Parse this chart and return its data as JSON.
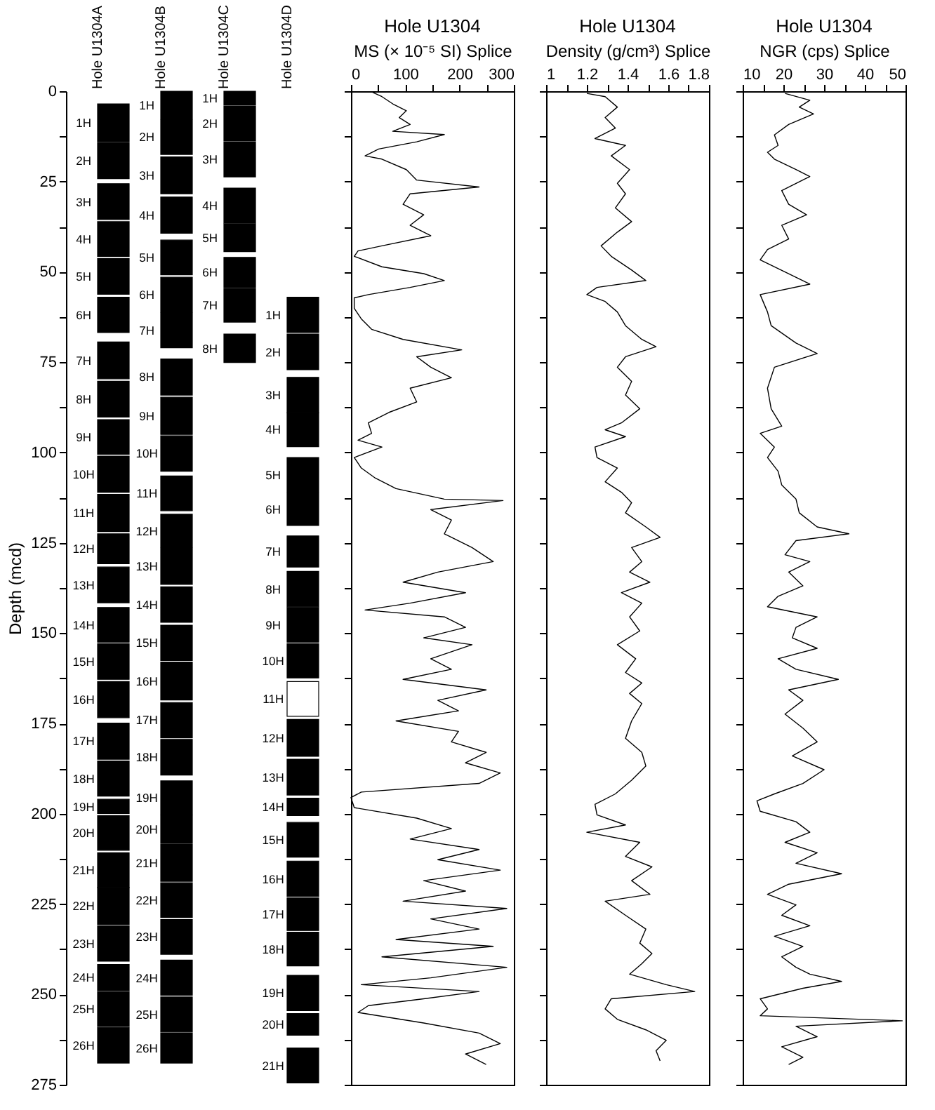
{
  "chart_data": [
    {
      "type": "bar",
      "categories": [
        "Hole U1304A",
        "Hole U1304B",
        "Hole U1304C",
        "Hole U1304D"
      ],
      "ylabel": "Depth (mcd)",
      "ylim": [
        275,
        0
      ],
      "yticks": [
        0,
        {
          "value": 12.5,
          "label": null
        },
        25,
        {
          "value": 37.5,
          "label": null
        },
        50,
        {
          "value": 62.5,
          "label": null
        },
        75,
        {
          "value": 87.5,
          "label": null
        },
        100,
        {
          "value": 112.5,
          "label": null
        },
        125,
        {
          "value": 137.5,
          "label": null
        },
        150,
        {
          "value": 162.5,
          "label": null
        },
        175,
        {
          "value": 187.5,
          "label": null
        },
        200,
        {
          "value": 212.5,
          "label": null
        },
        225,
        {
          "value": 237.5,
          "label": null
        },
        250,
        {
          "value": 262.5,
          "label": null
        },
        275
      ],
      "legend": false,
      "series": [
        {
          "color": "#000000",
          "base": [
            3.5,
            0,
            0,
            57.0
          ],
          "values": [
            10.5,
            7.7,
            3.8,
            9.8
          ]
        },
        {
          "color": "#000000",
          "base": [
            14.3,
            7.9,
            4.1,
            67.2
          ],
          "values": [
            9.9,
            9.6,
            9.6,
            9.9
          ]
        },
        {
          "color": "#000000",
          "base": [
            25.6,
            18.2,
            14.0,
            79.2
          ],
          "values": [
            9.9,
            10.2,
            9.7,
            9.8
          ]
        },
        {
          "color": "#000000",
          "base": [
            36.1,
            29.3,
            26.8,
            89.0
          ],
          "values": [
            9.6,
            10.0,
            9.7,
            9.4
          ]
        },
        {
          "color": "#000000",
          "base": [
            46.3,
            41.2,
            36.7,
            101.4
          ],
          "values": [
            9.9,
            9.6,
            7.7,
            9.6
          ]
        },
        {
          "color": "#000000",
          "base": [
            57.0,
            51.5,
            46.0,
            111.2
          ],
          "values": [
            9.8,
            9.6,
            8.4,
            9.0
          ]
        },
        {
          "color": "#000000",
          "base": [
            69.4,
            61.3,
            54.7,
            123.1
          ],
          "values": [
            10.2,
            9.7,
            9.2,
            8.6
          ]
        },
        {
          "color": "#000000",
          "base": [
            80.3,
            74.1,
            67.2,
            132.9
          ],
          "values": [
            9.9,
            10.0,
            7.9,
            9.8
          ]
        },
        {
          "color": "#000000",
          "base": [
            90.9,
            84.7,
            null,
            142.9
          ],
          "values": [
            9.6,
            10.3,
            null,
            9.6
          ]
        },
        {
          "color": "#000000",
          "base": [
            101.0,
            95.4,
            null,
            152.9
          ],
          "values": [
            10.0,
            9.8,
            null,
            9.5
          ]
        },
        {
          "colors": [
            "#000000",
            "#000000",
            null,
            "#ffffff"
          ],
          "base": [
            111.6,
            106.5,
            null,
            163.4
          ],
          "values": [
            10.3,
            9.6,
            null,
            9.6
          ]
        },
        {
          "color": "#000000",
          "base": [
            122.5,
            117.1,
            null,
            173.9
          ],
          "values": [
            8.3,
            9.2,
            null,
            10.2
          ]
        },
        {
          "color": "#000000",
          "base": [
            131.7,
            126.5,
            null,
            184.9
          ],
          "values": [
            9.9,
            10.0,
            null,
            9.9
          ]
        },
        {
          "color": "#000000",
          "base": [
            142.9,
            137.2,
            null,
            195.7
          ],
          "values": [
            9.6,
            9.8,
            null,
            4.8
          ]
        },
        {
          "color": "#000000",
          "base": [
            152.9,
            147.8,
            null,
            202.4
          ],
          "values": [
            9.9,
            9.8,
            null,
            9.6
          ]
        },
        {
          "color": "#000000",
          "base": [
            163.4,
            158.0,
            null,
            213.1
          ],
          "values": [
            10.0,
            10.5,
            null,
            9.8
          ]
        },
        {
          "color": "#000000",
          "base": [
            174.9,
            169.2,
            null,
            223.3
          ],
          "values": [
            10.0,
            9.8,
            null,
            9.0
          ]
        },
        {
          "color": "#000000",
          "base": [
            185.4,
            179.4,
            null,
            232.8
          ],
          "values": [
            9.7,
            9.9,
            null,
            9.3
          ]
        },
        {
          "color": "#000000",
          "base": [
            196.0,
            190.9,
            null,
            244.7
          ],
          "values": [
            3.9,
            9.4,
            null,
            9.8
          ]
        },
        {
          "color": "#000000",
          "base": [
            200.5,
            200.5,
            null,
            255.3
          ],
          "values": [
            9.6,
            7.7,
            null,
            6.0
          ]
        },
        {
          "color": "#000000",
          "base": [
            210.8,
            208.5,
            null,
            264.8
          ],
          "values": [
            9.6,
            10.2,
            null,
            9.7
          ]
        },
        {
          "color": "#000000",
          "base": [
            220.4,
            219.1,
            null,
            null
          ],
          "values": [
            10.2,
            9.6,
            null,
            null
          ]
        },
        {
          "color": "#000000",
          "base": [
            231.0,
            229.3,
            null,
            null
          ],
          "values": [
            9.8,
            9.6,
            null,
            null
          ]
        },
        {
          "color": "#000000",
          "base": [
            241.7,
            240.5,
            null,
            null
          ],
          "values": [
            7.2,
            9.7,
            null,
            null
          ]
        },
        {
          "color": "#000000",
          "base": [
            249.2,
            250.7,
            null,
            null
          ],
          "values": [
            9.6,
            9.7,
            null,
            null
          ]
        },
        {
          "color": "#000000",
          "base": [
            259.1,
            260.7,
            null,
            null
          ],
          "values": [
            9.9,
            8.3,
            null,
            null
          ]
        }
      ],
      "annotations": [
        {
          "text": "1H",
          "x": "Hole U1304A",
          "y": 8.8
        },
        {
          "text": "2H",
          "x": "Hole U1304A",
          "y": 19.3
        },
        {
          "text": "3H",
          "x": "Hole U1304A",
          "y": 30.6
        },
        {
          "text": "4H",
          "x": "Hole U1304A",
          "y": 40.9
        },
        {
          "text": "5H",
          "x": "Hole U1304A",
          "y": 51.3
        },
        {
          "text": "6H",
          "x": "Hole U1304A",
          "y": 61.9
        },
        {
          "text": "7H",
          "x": "Hole U1304A",
          "y": 74.5
        },
        {
          "text": "8H",
          "x": "Hole U1304A",
          "y": 85.3
        },
        {
          "text": "9H",
          "x": "Hole U1304A",
          "y": 95.7
        },
        {
          "text": "10H",
          "x": "Hole U1304A",
          "y": 106.0
        },
        {
          "text": "11H",
          "x": "Hole U1304A",
          "y": 116.8
        },
        {
          "text": "12H",
          "x": "Hole U1304A",
          "y": 126.7
        },
        {
          "text": "13H",
          "x": "Hole U1304A",
          "y": 136.7
        },
        {
          "text": "14H",
          "x": "Hole U1304A",
          "y": 147.7
        },
        {
          "text": "15H",
          "x": "Hole U1304A",
          "y": 157.9
        },
        {
          "text": "16H",
          "x": "Hole U1304A",
          "y": 168.4
        },
        {
          "text": "17H",
          "x": "Hole U1304A",
          "y": 179.9
        },
        {
          "text": "18H",
          "x": "Hole U1304A",
          "y": 190.3
        },
        {
          "text": "19H",
          "x": "Hole U1304A",
          "y": 198.0
        },
        {
          "text": "20H",
          "x": "Hole U1304A",
          "y": 205.3
        },
        {
          "text": "21H",
          "x": "Hole U1304A",
          "y": 215.6
        },
        {
          "text": "22H",
          "x": "Hole U1304A",
          "y": 225.5
        },
        {
          "text": "23H",
          "x": "Hole U1304A",
          "y": 235.9
        },
        {
          "text": "24H",
          "x": "Hole U1304A",
          "y": 245.3
        },
        {
          "text": "25H",
          "x": "Hole U1304A",
          "y": 254.0
        },
        {
          "text": "26H",
          "x": "Hole U1304A",
          "y": 264.1
        },
        {
          "text": "1H",
          "x": "Hole U1304B",
          "y": 3.9
        },
        {
          "text": "2H",
          "x": "Hole U1304B",
          "y": 12.7
        },
        {
          "text": "3H",
          "x": "Hole U1304B",
          "y": 23.3
        },
        {
          "text": "4H",
          "x": "Hole U1304B",
          "y": 34.3
        },
        {
          "text": "5H",
          "x": "Hole U1304B",
          "y": 46.0
        },
        {
          "text": "6H",
          "x": "Hole U1304B",
          "y": 56.3
        },
        {
          "text": "7H",
          "x": "Hole U1304B",
          "y": 66.2
        },
        {
          "text": "8H",
          "x": "Hole U1304B",
          "y": 79.1
        },
        {
          "text": "9H",
          "x": "Hole U1304B",
          "y": 89.9
        },
        {
          "text": "10H",
          "x": "Hole U1304B",
          "y": 100.3
        },
        {
          "text": "11H",
          "x": "Hole U1304B",
          "y": 111.3
        },
        {
          "text": "12H",
          "x": "Hole U1304B",
          "y": 121.7
        },
        {
          "text": "13H",
          "x": "Hole U1304B",
          "y": 131.5
        },
        {
          "text": "14H",
          "x": "Hole U1304B",
          "y": 142.1
        },
        {
          "text": "15H",
          "x": "Hole U1304B",
          "y": 152.7
        },
        {
          "text": "16H",
          "x": "Hole U1304B",
          "y": 163.3
        },
        {
          "text": "17H",
          "x": "Hole U1304B",
          "y": 174.1
        },
        {
          "text": "18H",
          "x": "Hole U1304B",
          "y": 184.4
        },
        {
          "text": "19H",
          "x": "Hole U1304B",
          "y": 195.6
        },
        {
          "text": "20H",
          "x": "Hole U1304B",
          "y": 204.4
        },
        {
          "text": "21H",
          "x": "Hole U1304B",
          "y": 213.6
        },
        {
          "text": "22H",
          "x": "Hole U1304B",
          "y": 223.9
        },
        {
          "text": "23H",
          "x": "Hole U1304B",
          "y": 234.1
        },
        {
          "text": "24H",
          "x": "Hole U1304B",
          "y": 245.4
        },
        {
          "text": "25H",
          "x": "Hole U1304B",
          "y": 255.6
        },
        {
          "text": "26H",
          "x": "Hole U1304B",
          "y": 264.9
        },
        {
          "text": "1H",
          "x": "Hole U1304C",
          "y": 1.9
        },
        {
          "text": "2H",
          "x": "Hole U1304C",
          "y": 8.9
        },
        {
          "text": "3H",
          "x": "Hole U1304C",
          "y": 18.9
        },
        {
          "text": "4H",
          "x": "Hole U1304C",
          "y": 31.7
        },
        {
          "text": "5H",
          "x": "Hole U1304C",
          "y": 40.6
        },
        {
          "text": "6H",
          "x": "Hole U1304C",
          "y": 50.2
        },
        {
          "text": "7H",
          "x": "Hole U1304C",
          "y": 59.3
        },
        {
          "text": "8H",
          "x": "Hole U1304C",
          "y": 71.2
        },
        {
          "text": "1H",
          "x": "Hole U1304D",
          "y": 61.9
        },
        {
          "text": "2H",
          "x": "Hole U1304D",
          "y": 72.2
        },
        {
          "text": "3H",
          "x": "Hole U1304D",
          "y": 84.1
        },
        {
          "text": "4H",
          "x": "Hole U1304D",
          "y": 93.7
        },
        {
          "text": "5H",
          "x": "Hole U1304D",
          "y": 106.2
        },
        {
          "text": "6H",
          "x": "Hole U1304D",
          "y": 115.7
        },
        {
          "text": "7H",
          "x": "Hole U1304D",
          "y": 127.4
        },
        {
          "text": "8H",
          "x": "Hole U1304D",
          "y": 137.8
        },
        {
          "text": "9H",
          "x": "Hole U1304D",
          "y": 147.7
        },
        {
          "text": "10H",
          "x": "Hole U1304D",
          "y": 157.7
        },
        {
          "text": "11H",
          "x": "Hole U1304D",
          "y": 168.2
        },
        {
          "text": "12H",
          "x": "Hole U1304D",
          "y": 179.0
        },
        {
          "text": "13H",
          "x": "Hole U1304D",
          "y": 189.9
        },
        {
          "text": "14H",
          "x": "Hole U1304D",
          "y": 198.1
        },
        {
          "text": "15H",
          "x": "Hole U1304D",
          "y": 207.2
        },
        {
          "text": "16H",
          "x": "Hole U1304D",
          "y": 218.0
        },
        {
          "text": "17H",
          "x": "Hole U1304D",
          "y": 227.8
        },
        {
          "text": "18H",
          "x": "Hole U1304D",
          "y": 237.5
        },
        {
          "text": "19H",
          "x": "Hole U1304D",
          "y": 249.6
        },
        {
          "text": "20H",
          "x": "Hole U1304D",
          "y": 258.3
        },
        {
          "text": "21H",
          "x": "Hole U1304D",
          "y": 269.7
        }
      ]
    },
    {
      "type": "line",
      "orientation": "horizontal",
      "title": "Hole U1304",
      "xlabel": "MS (× 10⁻⁵ SI) Splice",
      "xlim": [
        0,
        300
      ],
      "xticks": [
        0,
        {
          "value": 50,
          "label": null
        },
        100,
        {
          "value": 150,
          "label": null
        },
        200,
        {
          "value": 250,
          "label": null
        },
        300
      ],
      "ylim": [
        275,
        0
      ],
      "yticks": [
        {
          "value": 0,
          "label": null
        },
        {
          "value": 12.5,
          "label": null
        },
        {
          "value": 25,
          "label": null
        },
        {
          "value": 37.5,
          "label": null
        },
        {
          "value": 50,
          "label": null
        },
        {
          "value": 62.5,
          "label": null
        },
        {
          "value": 75,
          "label": null
        },
        {
          "value": 87.5,
          "label": null
        },
        {
          "value": 100,
          "label": null
        },
        {
          "value": 112.5,
          "label": null
        },
        {
          "value": 125,
          "label": null
        },
        {
          "value": 137.5,
          "label": null
        },
        {
          "value": 150,
          "label": null
        },
        {
          "value": 162.5,
          "label": null
        },
        {
          "value": 175,
          "label": null
        },
        {
          "value": 187.5,
          "label": null
        },
        {
          "value": 200,
          "label": null
        },
        {
          "value": 212.5,
          "label": null
        },
        {
          "value": 225,
          "label": null
        },
        {
          "value": 237.5,
          "label": null
        },
        {
          "value": 250,
          "label": null
        },
        {
          "value": 262.5,
          "label": null
        },
        {
          "value": 275,
          "label": null
        }
      ],
      "tick_labels": "x",
      "legend": false,
      "series": [
        {
          "color": "#000000",
          "x": [
            0.3,
            1.5,
            3.5,
            5.4,
            7.3,
            9.2,
            11.1,
            12,
            14,
            16,
            17.9,
            18.8,
            21.7,
            24.6,
            26.5,
            28.4,
            31.3,
            34.2,
            37.1,
            40,
            42.8,
            44.2,
            45.7,
            48.6,
            50.5,
            52.4,
            54.3,
            56.3,
            57.2,
            60.1,
            63,
            65.9,
            68.7,
            71.6,
            73.5,
            76.4,
            79.3,
            82.2,
            86,
            88.9,
            91.8,
            94.7,
            96.6,
            98.5,
            101.4,
            104.3,
            107.1,
            110,
            112.9,
            113.3,
            115.8,
            118.7,
            122.5,
            126.3,
            130.2,
            133.1,
            135.9,
            138.8,
            141.7,
            143.6,
            145.5,
            148.4,
            151.3,
            153.2,
            157.1,
            160,
            162.8,
            165.7,
            168.6,
            171.5,
            174.3,
            177.2,
            180.1,
            183,
            185.9,
            188.7,
            191.6,
            194,
            195.5,
            198.3,
            201.2,
            204.1,
            207,
            209.9,
            212.7,
            215.6,
            218.5,
            221.4,
            224.2,
            226.2,
            229.1,
            231.9,
            234.8,
            236.7,
            239.6,
            242.5,
            245.4,
            247.3,
            249.2,
            251.2,
            253.1,
            255,
            257.9,
            260.7,
            263.6,
            266.5,
            269.4
          ],
          "values": [
            40,
            57,
            77,
            102,
            89,
            109,
            77,
            172,
            121,
            51,
            26,
            57,
            102,
            121,
            236,
            109,
            96,
            134,
            109,
            147,
            57,
            13,
            6,
            57,
            134,
            172,
            109,
            32,
            6,
            6,
            19,
            38,
            96,
            204,
            121,
            147,
            185,
            109,
            121,
            70,
            32,
            38,
            13,
            57,
            6,
            19,
            45,
            83,
            172,
            280,
            147,
            185,
            172,
            223,
            262,
            160,
            96,
            211,
            109,
            26,
            172,
            211,
            134,
            223,
            147,
            185,
            96,
            249,
            160,
            198,
            83,
            198,
            185,
            249,
            211,
            275,
            236,
            19,
            0,
            6,
            121,
            185,
            109,
            236,
            160,
            275,
            134,
            211,
            96,
            287,
            147,
            236,
            83,
            262,
            57,
            287,
            147,
            19,
            236,
            134,
            32,
            13,
            134,
            236,
            275,
            211,
            249
          ]
        }
      ]
    },
    {
      "type": "line",
      "orientation": "horizontal",
      "title": "Hole U1304",
      "xlabel": "Density (g/cm³) Splice",
      "xlim": [
        1,
        1.8
      ],
      "xticks": [
        1,
        {
          "value": 1.1,
          "label": null
        },
        1.2,
        {
          "value": 1.3,
          "label": null
        },
        1.4,
        {
          "value": 1.5,
          "label": null
        },
        1.6,
        {
          "value": 1.7,
          "label": null
        },
        1.8
      ],
      "ylim": [
        275,
        0
      ],
      "yticks": [
        {
          "value": 0,
          "label": null
        },
        {
          "value": 12.5,
          "label": null
        },
        {
          "value": 25,
          "label": null
        },
        {
          "value": 37.5,
          "label": null
        },
        {
          "value": 50,
          "label": null
        },
        {
          "value": 62.5,
          "label": null
        },
        {
          "value": 75,
          "label": null
        },
        {
          "value": 87.5,
          "label": null
        },
        {
          "value": 100,
          "label": null
        },
        {
          "value": 112.5,
          "label": null
        },
        {
          "value": 125,
          "label": null
        },
        {
          "value": 137.5,
          "label": null
        },
        {
          "value": 150,
          "label": null
        },
        {
          "value": 162.5,
          "label": null
        },
        {
          "value": 175,
          "label": null
        },
        {
          "value": 187.5,
          "label": null
        },
        {
          "value": 200,
          "label": null
        },
        {
          "value": 212.5,
          "label": null
        },
        {
          "value": 225,
          "label": null
        },
        {
          "value": 237.5,
          "label": null
        },
        {
          "value": 250,
          "label": null
        },
        {
          "value": 262.5,
          "label": null
        },
        {
          "value": 275,
          "label": null
        }
      ],
      "tick_labels": "x",
      "legend": false,
      "series": [
        {
          "color": "#000000",
          "x": [
            0.6,
            1.5,
            4.4,
            7.3,
            10.2,
            13.1,
            15,
            17.9,
            21.7,
            25.5,
            28.4,
            32.3,
            36.1,
            39,
            42.8,
            45.7,
            49.5,
            52.4,
            54.3,
            56.3,
            58.2,
            61.1,
            64.9,
            68.7,
            70.7,
            73.5,
            76.4,
            80.3,
            84.1,
            87.9,
            91.8,
            93.7,
            95.6,
            98.5,
            101.4,
            104.3,
            108.1,
            111,
            113.9,
            116.7,
            120.6,
            123.5,
            126.3,
            130.2,
            133.1,
            135.9,
            138.8,
            141.7,
            145.5,
            149.4,
            153.2,
            157.1,
            160.9,
            163.8,
            166.7,
            169.5,
            174.3,
            179.1,
            183,
            186.8,
            190.7,
            194.5,
            197.4,
            200.3,
            203.1,
            205.1,
            207.9,
            211.8,
            214.7,
            218.5,
            222.3,
            224.2,
            228.1,
            231.9,
            235.8,
            238.7,
            241.5,
            244.4,
            247.3,
            249.2,
            251.2,
            254,
            256.9,
            259.8,
            262.7,
            265.6,
            268.4
          ],
          "values": [
            1.2,
            1.29,
            1.35,
            1.29,
            1.34,
            1.24,
            1.39,
            1.32,
            1.41,
            1.35,
            1.39,
            1.34,
            1.42,
            1.35,
            1.27,
            1.32,
            1.42,
            1.49,
            1.25,
            1.2,
            1.29,
            1.35,
            1.39,
            1.47,
            1.54,
            1.39,
            1.35,
            1.42,
            1.39,
            1.46,
            1.37,
            1.29,
            1.39,
            1.24,
            1.25,
            1.35,
            1.29,
            1.37,
            1.42,
            1.39,
            1.49,
            1.56,
            1.42,
            1.47,
            1.41,
            1.51,
            1.37,
            1.47,
            1.41,
            1.46,
            1.35,
            1.44,
            1.39,
            1.47,
            1.41,
            1.47,
            1.42,
            1.39,
            1.47,
            1.49,
            1.42,
            1.34,
            1.24,
            1.25,
            1.39,
            1.2,
            1.46,
            1.39,
            1.52,
            1.42,
            1.51,
            1.29,
            1.39,
            1.49,
            1.46,
            1.52,
            1.47,
            1.41,
            1.59,
            1.73,
            1.32,
            1.29,
            1.35,
            1.49,
            1.59,
            1.54,
            1.56
          ]
        }
      ]
    },
    {
      "type": "line",
      "orientation": "horizontal",
      "title": "Hole U1304",
      "xlabel": "NGR (cps) Splice",
      "xlim": [
        10,
        50
      ],
      "xticks": [
        10,
        {
          "value": 15,
          "label": null
        },
        20,
        {
          "value": 25,
          "label": null
        },
        30,
        {
          "value": 35,
          "label": null
        },
        40,
        {
          "value": 45,
          "label": null
        },
        50
      ],
      "ylim": [
        275,
        0
      ],
      "yticks": [
        {
          "value": 0,
          "label": null
        },
        {
          "value": 12.5,
          "label": null
        },
        {
          "value": 25,
          "label": null
        },
        {
          "value": 37.5,
          "label": null
        },
        {
          "value": 50,
          "label": null
        },
        {
          "value": 62.5,
          "label": null
        },
        {
          "value": 75,
          "label": null
        },
        {
          "value": 87.5,
          "label": null
        },
        {
          "value": 100,
          "label": null
        },
        {
          "value": 112.5,
          "label": null
        },
        {
          "value": 125,
          "label": null
        },
        {
          "value": 137.5,
          "label": null
        },
        {
          "value": 150,
          "label": null
        },
        {
          "value": 162.5,
          "label": null
        },
        {
          "value": 175,
          "label": null
        },
        {
          "value": 187.5,
          "label": null
        },
        {
          "value": 200,
          "label": null
        },
        {
          "value": 212.5,
          "label": null
        },
        {
          "value": 225,
          "label": null
        },
        {
          "value": 237.5,
          "label": null
        },
        {
          "value": 250,
          "label": null
        },
        {
          "value": 262.5,
          "label": null
        },
        {
          "value": 275,
          "label": null
        }
      ],
      "tick_labels": "x",
      "legend": false,
      "series": [
        {
          "color": "#000000",
          "x": [
            0.6,
            2.5,
            4.4,
            6.3,
            9.2,
            12.1,
            15,
            16.9,
            18.8,
            21.7,
            23.6,
            27.5,
            31.3,
            34.2,
            37.1,
            40.9,
            43.8,
            46.7,
            50.5,
            53.4,
            56.3,
            61.1,
            64.9,
            69.7,
            72.6,
            76.4,
            82.2,
            87.9,
            92.7,
            94.7,
            98.5,
            101.4,
            105.2,
            109,
            112.9,
            116.7,
            120.6,
            122.5,
            124.4,
            128.3,
            130.2,
            133.1,
            136.9,
            139.8,
            142.7,
            145.5,
            148.4,
            151.3,
            154.2,
            157.1,
            160,
            162.8,
            165.7,
            168.6,
            172.4,
            176.3,
            180.1,
            184,
            187.8,
            191.6,
            194.5,
            196.4,
            199.3,
            202.2,
            205.1,
            207.9,
            210.8,
            213.7,
            216.6,
            219.5,
            222.3,
            225.2,
            228.1,
            231,
            233.9,
            236.7,
            239.6,
            242.5,
            244.4,
            246.4,
            248.3,
            251.2,
            254,
            255.9,
            257.3,
            258.8,
            261.7,
            264.5,
            267.4,
            269.4
          ],
          "values": [
            20.4,
            26.5,
            23.9,
            27.4,
            21.3,
            17.8,
            18.7,
            16.1,
            17.8,
            23.1,
            26.5,
            19.6,
            21.3,
            25.7,
            19.6,
            21.3,
            16.1,
            14.3,
            21.3,
            26.5,
            14.3,
            16.1,
            17,
            23.1,
            28.3,
            17.8,
            16.1,
            17,
            19.6,
            14.3,
            17.8,
            16.1,
            18.7,
            19.6,
            23.1,
            23.9,
            28.3,
            36.1,
            23.1,
            20.4,
            26.5,
            21.3,
            24.8,
            18.7,
            16.1,
            28.3,
            23.1,
            22.2,
            28.3,
            18.7,
            23.1,
            33.5,
            21.3,
            24.8,
            20.4,
            24.8,
            28.3,
            22.2,
            30,
            24.8,
            17.8,
            13.5,
            14.3,
            23.1,
            26.5,
            20.4,
            28.3,
            23.1,
            34.3,
            21.3,
            16.1,
            23.1,
            19.6,
            26.5,
            17.8,
            24.8,
            19.6,
            23.1,
            26.5,
            34.3,
            24.8,
            14.3,
            16.1,
            14.3,
            49.2,
            23.1,
            28.3,
            19.6,
            24.8,
            21.3
          ]
        }
      ]
    }
  ]
}
